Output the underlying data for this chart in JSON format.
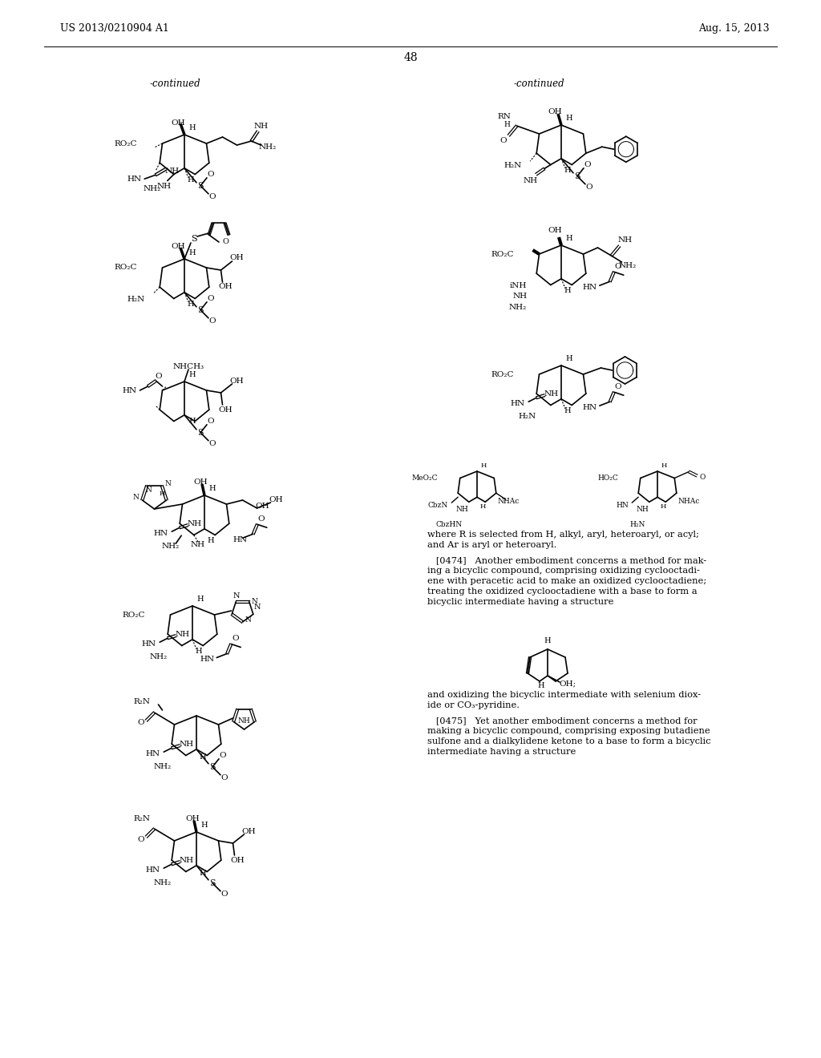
{
  "background_color": "#ffffff",
  "header_left": "US 2013/0210904 A1",
  "header_right": "Aug. 15, 2013",
  "page_number": "48"
}
